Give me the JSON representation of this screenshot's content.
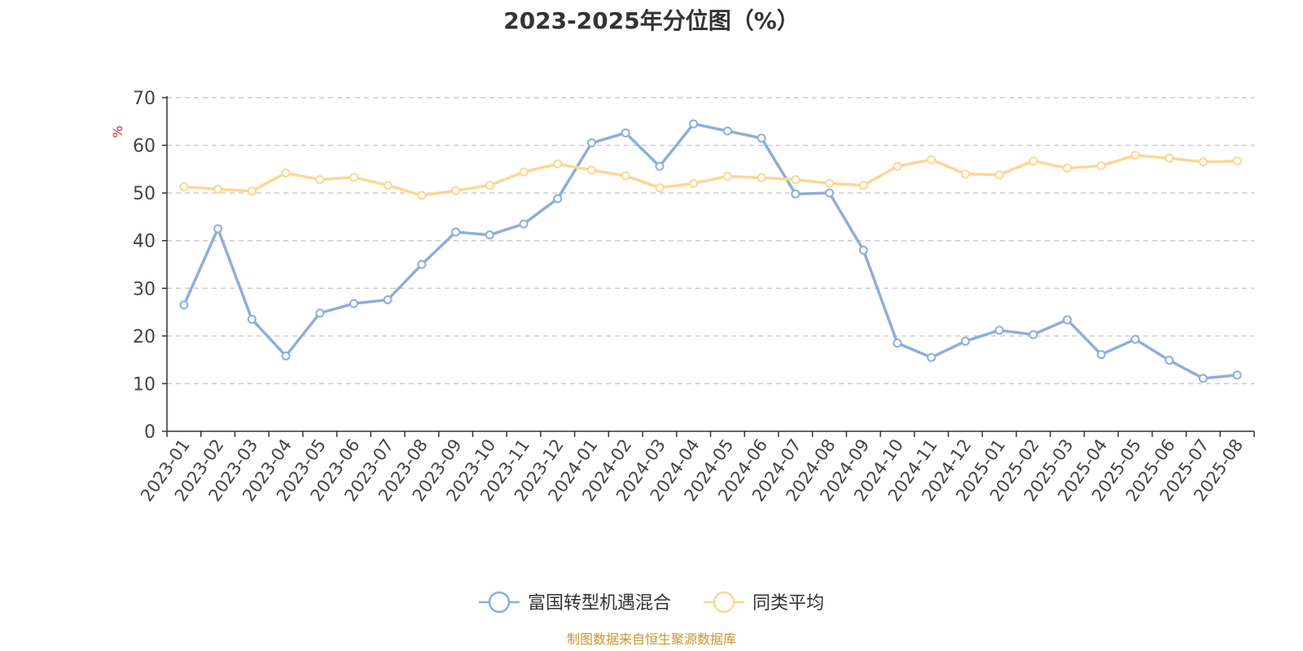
{
  "chart_data": {
    "type": "line",
    "title": "2023-2025年分位图（%）",
    "ylabel": "%",
    "xlabel": "",
    "ylim": [
      0,
      70
    ],
    "yticks": [
      0,
      10,
      20,
      30,
      40,
      50,
      60,
      70
    ],
    "grid": "horizontal-dashed",
    "legend_position": "bottom-center",
    "categories": [
      "2023-01",
      "2023-02",
      "2023-03",
      "2023-04",
      "2023-05",
      "2023-06",
      "2023-07",
      "2023-08",
      "2023-09",
      "2023-10",
      "2023-11",
      "2023-12",
      "2024-01",
      "2024-02",
      "2024-03",
      "2024-04",
      "2024-05",
      "2024-06",
      "2024-07",
      "2024-08",
      "2024-09",
      "2024-10",
      "2024-11",
      "2024-12",
      "2025-01",
      "2025-02",
      "2025-03",
      "2025-04",
      "2025-05",
      "2025-06",
      "2025-07",
      "2025-08"
    ],
    "series": [
      {
        "name": "富国转型机遇混合",
        "color": "#8eaedb",
        "values": [
          26.5,
          42.5,
          23.5,
          15.8,
          24.8,
          26.8,
          27.6,
          35.0,
          41.8,
          41.2,
          43.5,
          48.8,
          60.5,
          62.6,
          55.6,
          64.5,
          63.0,
          61.5,
          49.8,
          50.0,
          38.0,
          18.5,
          15.5,
          18.9,
          21.2,
          20.3,
          23.4,
          16.1,
          19.3,
          14.9,
          11.1,
          11.8
        ]
      },
      {
        "name": "同类平均",
        "color": "#fcd794",
        "values": [
          51.3,
          50.8,
          50.4,
          54.2,
          52.8,
          53.3,
          51.6,
          49.5,
          50.5,
          51.6,
          54.4,
          56.1,
          54.8,
          53.6,
          51.1,
          52.0,
          53.5,
          53.2,
          52.8,
          52.0,
          51.6,
          55.6,
          57.0,
          54.0,
          53.8,
          56.7,
          55.2,
          55.7,
          57.9,
          57.3,
          56.5,
          56.7
        ]
      }
    ]
  },
  "footer": {
    "source": "制图数据来自恒生聚源数据库"
  }
}
